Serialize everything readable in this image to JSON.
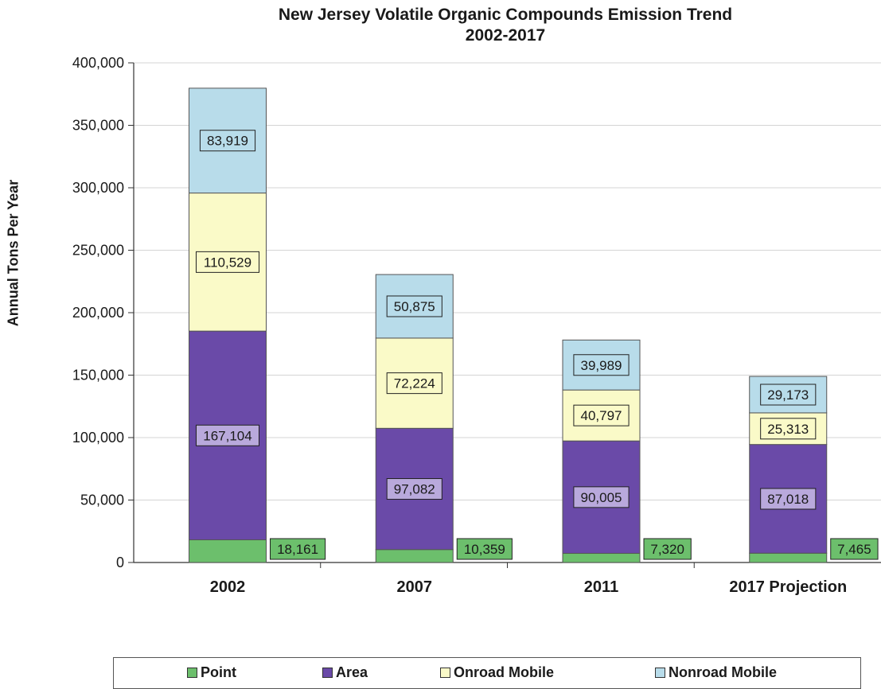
{
  "chart_data": {
    "type": "bar",
    "stacked": true,
    "title_line1": "New Jersey Volatile Organic Compounds Emission Trend",
    "title_line2": "2002-2017",
    "ylabel": "Annual Tons Per Year",
    "xlabel": "",
    "ylim": [
      0,
      400000
    ],
    "yticks": [
      "0",
      "50,000",
      "100,000",
      "150,000",
      "200,000",
      "250,000",
      "300,000",
      "350,000",
      "400,000"
    ],
    "ytick_values": [
      0,
      50000,
      100000,
      150000,
      200000,
      250000,
      300000,
      350000,
      400000
    ],
    "categories": [
      "2002",
      "2007",
      "2011",
      "2017  Projection"
    ],
    "series": [
      {
        "name": "Point",
        "values": [
          18161,
          10359,
          7320,
          7465
        ],
        "labels": [
          "18,161",
          "10,359",
          "7,320",
          "7,465"
        ],
        "color": "#6cbf6c"
      },
      {
        "name": "Area",
        "values": [
          167104,
          97082,
          90005,
          87018
        ],
        "labels": [
          "167,104",
          "97,082",
          "90,005",
          "87,018"
        ],
        "color": "#6a4aa8"
      },
      {
        "name": "Onroad Mobile",
        "values": [
          110529,
          72224,
          40797,
          25313
        ],
        "labels": [
          "110,529",
          "72,224",
          "40,797",
          "25,313"
        ],
        "color": "#fafac8"
      },
      {
        "name": "Nonroad Mobile",
        "values": [
          83919,
          50875,
          39989,
          29173
        ],
        "labels": [
          "83,919",
          "50,875",
          "39,989",
          "29,173"
        ],
        "color": "#b8dcea"
      }
    ],
    "grid": true,
    "legend_position": "bottom"
  }
}
